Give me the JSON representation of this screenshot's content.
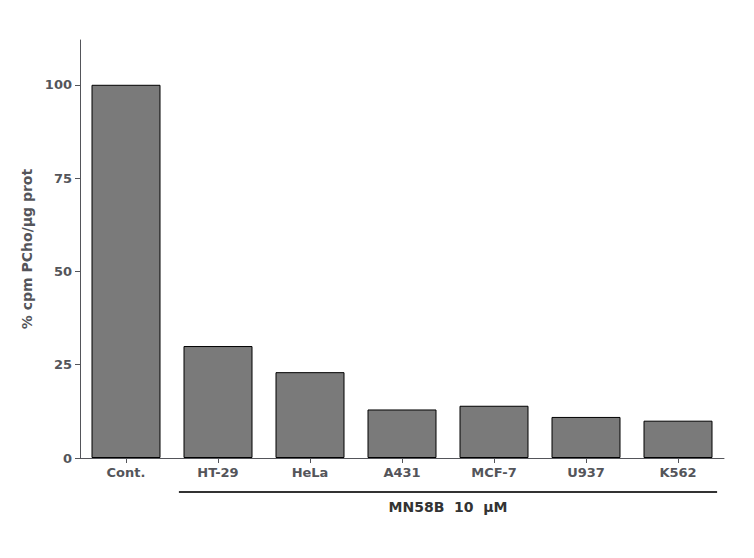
{
  "chart_data": {
    "type": "bar",
    "categories": [
      "Cont.",
      "HT-29",
      "HeLa",
      "A431",
      "MCF-7",
      "U937",
      "K562"
    ],
    "values": [
      100,
      30,
      23,
      13,
      14,
      11,
      10
    ],
    "color": "#7a7a7a",
    "ylabel": "% cpm PCho/µg prot",
    "annotations": [
      "MN58B  10  μM"
    ],
    "ylim": [
      0,
      112
    ],
    "yticks": [
      0,
      25,
      50,
      75,
      100
    ],
    "grid": false
  }
}
